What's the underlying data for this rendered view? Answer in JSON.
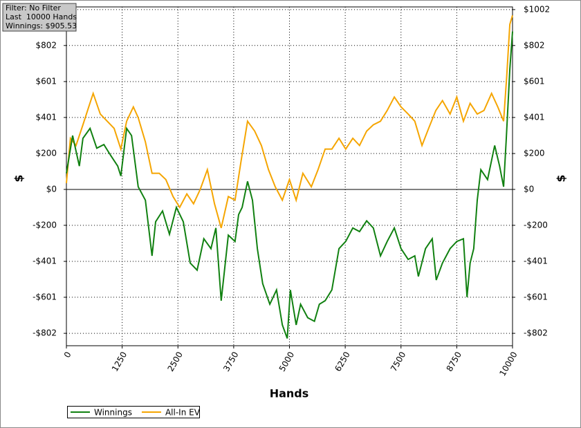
{
  "chart_data": {
    "type": "line",
    "annotations": [
      "Filter: No Filter",
      "Last  10000 Hands",
      "Winnings: $905.53"
    ],
    "xlabel": "Hands",
    "ylabel": "$",
    "xlim": [
      0,
      10000
    ],
    "xticks": [
      0,
      1250,
      2500,
      3750,
      5000,
      6250,
      7500,
      8750,
      10000
    ],
    "ylim": [
      -871,
      1017
    ],
    "yticks": [
      {
        "value": 1002,
        "label": "$1002"
      },
      {
        "value": 802,
        "label": "$802"
      },
      {
        "value": 601,
        "label": "$601"
      },
      {
        "value": 401,
        "label": "$401"
      },
      {
        "value": 200,
        "label": "$200"
      },
      {
        "value": 0,
        "label": "$0"
      },
      {
        "value": -200,
        "label": "-$200"
      },
      {
        "value": -401,
        "label": "-$401"
      },
      {
        "value": -601,
        "label": "-$601"
      },
      {
        "value": -802,
        "label": "-$802"
      }
    ],
    "grid": true,
    "legend": "bottom-left",
    "series": [
      {
        "name": "Winnings",
        "color": "#108010",
        "x": [
          0,
          140,
          290,
          370,
          530,
          680,
          840,
          990,
          1150,
          1220,
          1350,
          1460,
          1610,
          1770,
          1920,
          2000,
          2155,
          2310,
          2465,
          2620,
          2775,
          2930,
          3080,
          3240,
          3350,
          3470,
          3630,
          3780,
          3860,
          3940,
          4060,
          4170,
          4280,
          4400,
          4560,
          4710,
          4840,
          4950,
          5020,
          5150,
          5250,
          5410,
          5560,
          5670,
          5800,
          5950,
          6110,
          6260,
          6420,
          6570,
          6730,
          6880,
          7040,
          7190,
          7350,
          7500,
          7660,
          7810,
          7890,
          8050,
          8200,
          8290,
          8430,
          8600,
          8750,
          8900,
          8980,
          9050,
          9130,
          9210,
          9290,
          9440,
          9600,
          9710,
          9800,
          9860,
          9940,
          9985,
          10000
        ],
        "values": [
          90,
          300,
          130,
          285,
          340,
          230,
          250,
          190,
          130,
          75,
          340,
          300,
          15,
          -60,
          -370,
          -180,
          -120,
          -250,
          -100,
          -180,
          -410,
          -450,
          -275,
          -330,
          -215,
          -620,
          -255,
          -290,
          -140,
          -100,
          45,
          -60,
          -330,
          -525,
          -640,
          -560,
          -755,
          -830,
          -560,
          -755,
          -640,
          -715,
          -735,
          -640,
          -620,
          -560,
          -330,
          -290,
          -215,
          -235,
          -175,
          -215,
          -370,
          -290,
          -215,
          -330,
          -390,
          -370,
          -485,
          -330,
          -275,
          -505,
          -410,
          -330,
          -290,
          -275,
          -600,
          -410,
          -330,
          -60,
          110,
          55,
          245,
          130,
          15,
          285,
          670,
          825,
          880
        ]
      },
      {
        "name": "All-In EV",
        "color": "#f5a500",
        "x": [
          0,
          90,
          215,
          370,
          500,
          600,
          760,
          915,
          1070,
          1220,
          1350,
          1500,
          1610,
          1770,
          1920,
          2080,
          2230,
          2390,
          2540,
          2700,
          2850,
          3000,
          3160,
          3320,
          3470,
          3630,
          3780,
          3910,
          4060,
          4220,
          4370,
          4530,
          4680,
          4840,
          5000,
          5150,
          5300,
          5490,
          5640,
          5800,
          5950,
          6110,
          6260,
          6420,
          6570,
          6730,
          6880,
          7040,
          7190,
          7350,
          7500,
          7660,
          7810,
          7970,
          8120,
          8280,
          8430,
          8600,
          8750,
          8900,
          9050,
          9210,
          9360,
          9530,
          9670,
          9800,
          9870,
          9940,
          10000
        ],
        "values": [
          35,
          285,
          245,
          360,
          460,
          535,
          420,
          380,
          340,
          225,
          380,
          460,
          400,
          265,
          90,
          90,
          55,
          -40,
          -100,
          -25,
          -80,
          0,
          110,
          -80,
          -215,
          -40,
          -60,
          150,
          380,
          325,
          245,
          110,
          15,
          -60,
          55,
          -60,
          90,
          15,
          110,
          225,
          225,
          285,
          225,
          285,
          245,
          325,
          360,
          380,
          440,
          515,
          460,
          420,
          380,
          245,
          340,
          440,
          495,
          420,
          515,
          380,
          480,
          420,
          440,
          535,
          460,
          380,
          630,
          920,
          970
        ]
      }
    ]
  }
}
